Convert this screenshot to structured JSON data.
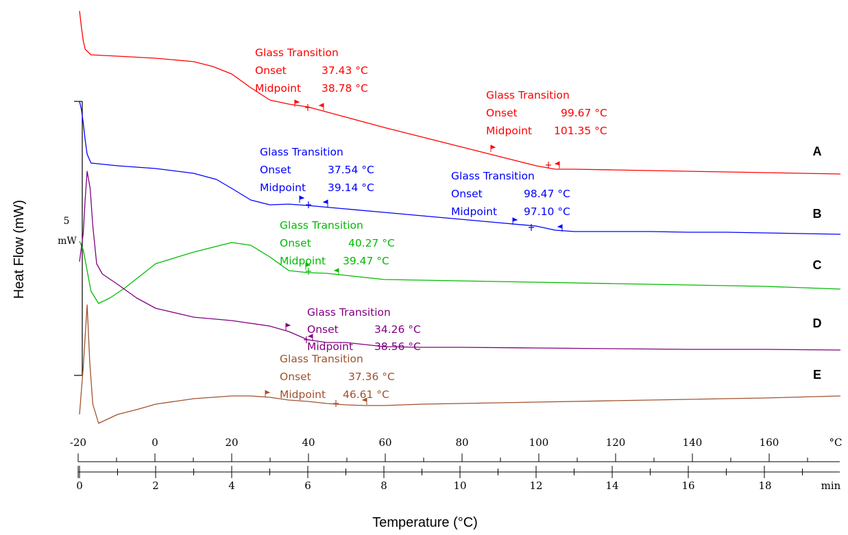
{
  "chart_data": {
    "type": "line",
    "title": "",
    "xlabel": "Temperature (°C)",
    "ylabel": "Heat Flow (mW)",
    "x_top_unit": "°C",
    "x_bottom_unit": "min",
    "x_top_ticks": [
      "-20",
      "0",
      "20",
      "40",
      "60",
      "80",
      "100",
      "120",
      "140",
      "160"
    ],
    "x_bottom_ticks": [
      "0",
      "2",
      "4",
      "6",
      "8",
      "10",
      "12",
      "14",
      "16",
      "18"
    ],
    "xlim_min": [
      0,
      20
    ],
    "scale_bar": {
      "value": "5",
      "unit": "mW"
    },
    "grid": false,
    "legend": "none",
    "series": [
      {
        "name": "A",
        "color": "#ff0000",
        "points": [
          [
            0.0,
            16
          ],
          [
            0.05,
            40
          ],
          [
            0.1,
            60
          ],
          [
            0.15,
            72
          ],
          [
            0.3,
            80
          ],
          [
            1,
            82
          ],
          [
            2,
            85
          ],
          [
            3,
            90
          ],
          [
            3.5,
            97
          ],
          [
            4,
            108
          ],
          [
            4.5,
            128
          ],
          [
            5,
            146
          ],
          [
            5.5,
            152
          ],
          [
            6,
            156
          ],
          [
            7,
            171
          ],
          [
            8,
            186
          ],
          [
            9,
            200
          ],
          [
            10,
            214
          ],
          [
            11,
            228
          ],
          [
            12,
            242
          ],
          [
            12.3,
            245
          ],
          [
            12.5,
            247
          ],
          [
            13,
            247
          ],
          [
            14,
            248
          ],
          [
            15,
            249
          ],
          [
            16,
            250
          ],
          [
            17,
            251
          ],
          [
            18,
            252
          ],
          [
            19,
            253
          ],
          [
            20,
            254
          ]
        ],
        "annotations": [
          {
            "title": "Glass Transition",
            "onset_label": "Onset",
            "onset": "37.43 °C",
            "midpoint_label": "Midpoint",
            "midpoint": "38.78 °C"
          },
          {
            "title": "Glass Transition",
            "onset_label": "Onset",
            "onset": "99.67 °C",
            "midpoint_label": "Midpoint",
            "midpoint": "101.35 °C"
          }
        ]
      },
      {
        "name": "B",
        "color": "#0000ff",
        "points": [
          [
            0.0,
            148
          ],
          [
            0.05,
            160
          ],
          [
            0.1,
            180
          ],
          [
            0.15,
            205
          ],
          [
            0.2,
            225
          ],
          [
            0.3,
            238
          ],
          [
            1,
            242
          ],
          [
            2,
            246
          ],
          [
            3,
            253
          ],
          [
            3.6,
            262
          ],
          [
            4,
            275
          ],
          [
            4.5,
            292
          ],
          [
            5,
            299
          ],
          [
            5.5,
            298
          ],
          [
            6,
            300
          ],
          [
            7,
            305
          ],
          [
            8,
            310
          ],
          [
            9,
            315
          ],
          [
            10,
            320
          ],
          [
            11,
            325
          ],
          [
            12,
            330
          ],
          [
            12.5,
            336
          ],
          [
            13,
            338
          ],
          [
            14,
            338
          ],
          [
            15,
            338
          ],
          [
            16,
            339
          ],
          [
            17,
            339
          ],
          [
            18,
            340
          ],
          [
            19,
            341
          ],
          [
            20,
            342
          ]
        ],
        "annotations": [
          {
            "title": "Glass Transition",
            "onset_label": "Onset",
            "onset": "37.54 °C",
            "midpoint_label": "Midpoint",
            "midpoint": "39.14 °C"
          },
          {
            "title": "Glass Transition",
            "onset_label": "Onset",
            "onset": "98.47 °C",
            "midpoint_label": "Midpoint",
            "midpoint": "97.10 °C"
          }
        ]
      },
      {
        "name": "C",
        "color": "#00bb00",
        "points": [
          [
            0.0,
            352
          ],
          [
            0.1,
            365
          ],
          [
            0.2,
            395
          ],
          [
            0.3,
            425
          ],
          [
            0.5,
            443
          ],
          [
            0.8,
            435
          ],
          [
            1.2,
            420
          ],
          [
            2,
            385
          ],
          [
            3,
            368
          ],
          [
            4,
            354
          ],
          [
            4.5,
            358
          ],
          [
            5,
            375
          ],
          [
            5.5,
            395
          ],
          [
            6,
            398
          ],
          [
            6.5,
            399
          ],
          [
            7,
            402
          ],
          [
            7.5,
            405
          ],
          [
            8,
            408
          ],
          [
            10,
            410
          ],
          [
            12,
            412
          ],
          [
            14,
            414
          ],
          [
            16,
            416
          ],
          [
            18,
            418
          ],
          [
            20,
            422
          ]
        ],
        "annotations": [
          {
            "title": "Glass Transition",
            "onset_label": "Onset",
            "onset": "40.27 °C",
            "midpoint_label": "Midpoint",
            "midpoint": "39.47 °C"
          }
        ]
      },
      {
        "name": "D",
        "color": "#800080",
        "points": [
          [
            0.0,
            382
          ],
          [
            0.1,
            340
          ],
          [
            0.15,
            290
          ],
          [
            0.2,
            250
          ],
          [
            0.28,
            275
          ],
          [
            0.35,
            330
          ],
          [
            0.45,
            385
          ],
          [
            0.6,
            400
          ],
          [
            1,
            415
          ],
          [
            1.5,
            435
          ],
          [
            2,
            450
          ],
          [
            3,
            463
          ],
          [
            4,
            468
          ],
          [
            5,
            476
          ],
          [
            5.5,
            484
          ],
          [
            6,
            496
          ],
          [
            6.5,
            500
          ],
          [
            7,
            500
          ],
          [
            8,
            506
          ],
          [
            9,
            507
          ],
          [
            10,
            507
          ],
          [
            12,
            508
          ],
          [
            14,
            509
          ],
          [
            16,
            510
          ],
          [
            18,
            510
          ],
          [
            20,
            511
          ]
        ],
        "annotations": [
          {
            "title": "Glass Transition",
            "onset_label": "Onset",
            "onset": "34.26 °C",
            "midpoint_label": "Midpoint",
            "midpoint": "38.56 °C"
          }
        ]
      },
      {
        "name": "E",
        "color": "#a0522d",
        "points": [
          [
            0.0,
            605
          ],
          [
            0.1,
            535
          ],
          [
            0.2,
            445
          ],
          [
            0.27,
            530
          ],
          [
            0.35,
            590
          ],
          [
            0.5,
            618
          ],
          [
            1,
            605
          ],
          [
            1.5,
            598
          ],
          [
            2,
            590
          ],
          [
            3,
            582
          ],
          [
            4,
            578
          ],
          [
            4.5,
            578
          ],
          [
            5,
            580
          ],
          [
            5.5,
            584
          ],
          [
            6,
            586
          ],
          [
            6.5,
            589
          ],
          [
            7,
            591
          ],
          [
            7.5,
            592
          ],
          [
            8,
            592
          ],
          [
            9,
            590
          ],
          [
            10,
            589
          ],
          [
            12,
            587
          ],
          [
            14,
            585
          ],
          [
            16,
            583
          ],
          [
            18,
            581
          ],
          [
            20,
            578
          ]
        ],
        "annotations": [
          {
            "title": "Glass Transition",
            "onset_label": "Onset",
            "onset": "37.36 °C",
            "midpoint_label": "Midpoint",
            "midpoint": "46.61 °C"
          }
        ]
      }
    ]
  }
}
